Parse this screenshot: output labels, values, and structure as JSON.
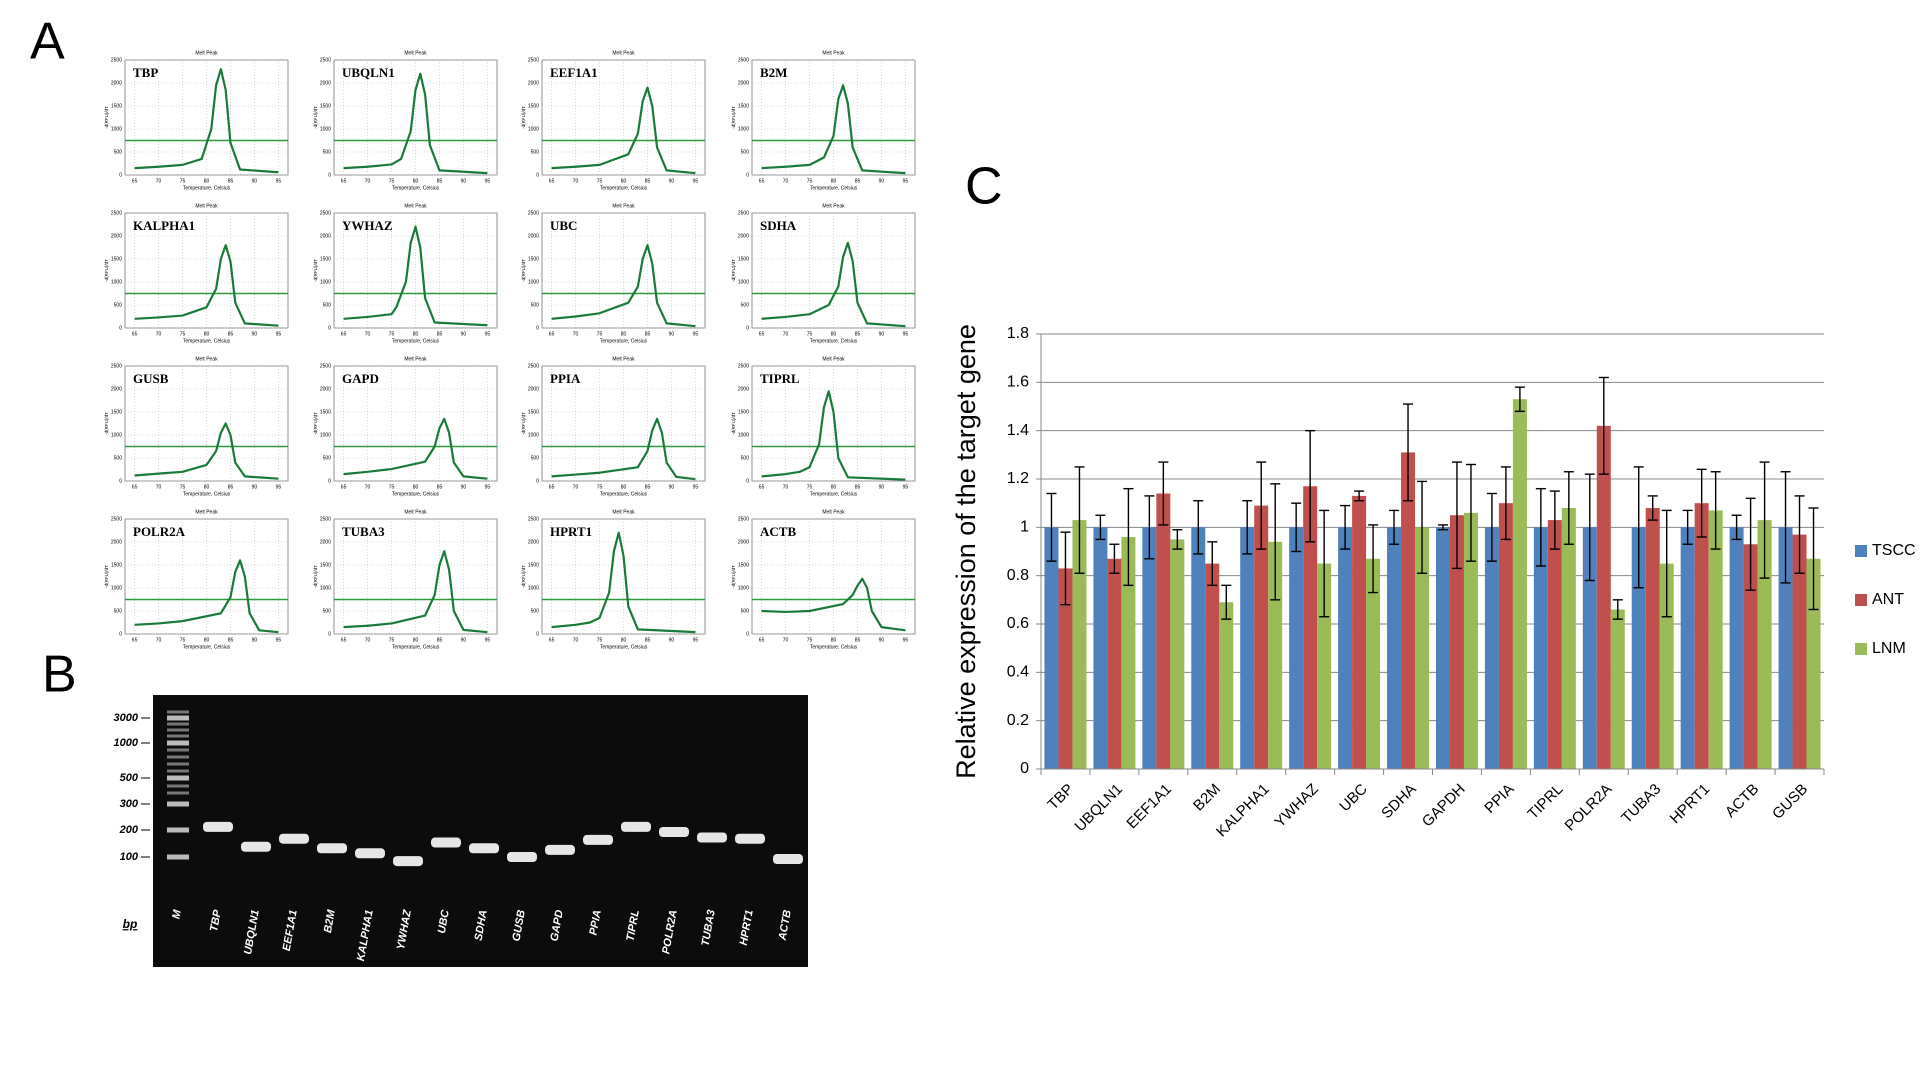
{
  "panel_labels": [
    "A",
    "B",
    "C"
  ],
  "melt_peaks": {
    "title": "Melt Peak",
    "x_label": "Temperature, Celsius",
    "y_label": "-d(RFU)/dT",
    "xlim": [
      63,
      97
    ],
    "ylim": [
      0,
      2500
    ],
    "xticks": [
      65,
      70,
      75,
      80,
      85,
      90,
      95
    ],
    "yticks": [
      0,
      500,
      1000,
      1500,
      2000,
      2500
    ],
    "threshold": 750,
    "color": "#1a7a3a",
    "panels": [
      {
        "gene": "TBP",
        "x": [
          65,
          70,
          75,
          79,
          81,
          82,
          83,
          84,
          85,
          87,
          95
        ],
        "y": [
          150,
          180,
          220,
          350,
          1000,
          1950,
          2300,
          1850,
          700,
          120,
          60
        ]
      },
      {
        "gene": "UBQLN1",
        "x": [
          65,
          70,
          75,
          77,
          79,
          80,
          81,
          82,
          83,
          85,
          95
        ],
        "y": [
          150,
          180,
          230,
          350,
          950,
          1850,
          2200,
          1750,
          650,
          100,
          40
        ]
      },
      {
        "gene": "EEF1A1",
        "x": [
          65,
          70,
          75,
          81,
          83,
          84,
          85,
          86,
          87,
          89,
          95
        ],
        "y": [
          150,
          180,
          220,
          450,
          900,
          1600,
          1900,
          1500,
          600,
          100,
          40
        ]
      },
      {
        "gene": "B2M",
        "x": [
          65,
          70,
          75,
          78,
          80,
          81,
          82,
          83,
          84,
          86,
          95
        ],
        "y": [
          150,
          180,
          220,
          380,
          850,
          1650,
          1950,
          1550,
          600,
          100,
          40
        ]
      },
      {
        "gene": "KALPHA1",
        "x": [
          65,
          70,
          75,
          80,
          82,
          83,
          84,
          85,
          86,
          88,
          95
        ],
        "y": [
          200,
          230,
          270,
          450,
          850,
          1500,
          1800,
          1450,
          550,
          100,
          50
        ]
      },
      {
        "gene": "YWHAZ",
        "x": [
          65,
          70,
          75,
          76,
          78,
          79,
          80,
          81,
          82,
          84,
          95
        ],
        "y": [
          200,
          240,
          300,
          450,
          1000,
          1850,
          2200,
          1750,
          650,
          120,
          60
        ]
      },
      {
        "gene": "UBC",
        "x": [
          65,
          70,
          75,
          81,
          83,
          84,
          85,
          86,
          87,
          89,
          95
        ],
        "y": [
          200,
          250,
          320,
          550,
          900,
          1500,
          1800,
          1400,
          550,
          100,
          40
        ]
      },
      {
        "gene": "SDHA",
        "x": [
          65,
          70,
          75,
          79,
          81,
          82,
          83,
          84,
          85,
          87,
          95
        ],
        "y": [
          200,
          240,
          300,
          500,
          900,
          1550,
          1850,
          1450,
          550,
          100,
          40
        ]
      },
      {
        "gene": "GUSB",
        "x": [
          65,
          70,
          75,
          80,
          82,
          83,
          84,
          85,
          86,
          88,
          95
        ],
        "y": [
          120,
          160,
          200,
          350,
          650,
          1050,
          1250,
          1000,
          400,
          100,
          50
        ]
      },
      {
        "gene": "GAPD",
        "x": [
          65,
          70,
          75,
          82,
          84,
          85,
          86,
          87,
          88,
          90,
          95
        ],
        "y": [
          150,
          200,
          260,
          420,
          750,
          1150,
          1350,
          1050,
          400,
          100,
          50
        ]
      },
      {
        "gene": "PPIA",
        "x": [
          65,
          70,
          75,
          83,
          85,
          86,
          87,
          88,
          89,
          91,
          95
        ],
        "y": [
          100,
          140,
          180,
          300,
          650,
          1100,
          1350,
          1050,
          400,
          90,
          40
        ]
      },
      {
        "gene": "TIPRL",
        "x": [
          65,
          70,
          73,
          75,
          77,
          78,
          79,
          80,
          81,
          83,
          95
        ],
        "y": [
          100,
          150,
          200,
          300,
          800,
          1600,
          1950,
          1500,
          500,
          80,
          30
        ]
      },
      {
        "gene": "POLR2A",
        "x": [
          65,
          70,
          75,
          83,
          85,
          86,
          87,
          88,
          89,
          91,
          95
        ],
        "y": [
          200,
          230,
          280,
          450,
          800,
          1350,
          1600,
          1250,
          450,
          80,
          40
        ]
      },
      {
        "gene": "TUBA3",
        "x": [
          65,
          70,
          75,
          82,
          84,
          85,
          86,
          87,
          88,
          90,
          95
        ],
        "y": [
          150,
          180,
          230,
          400,
          850,
          1500,
          1800,
          1400,
          500,
          90,
          40
        ]
      },
      {
        "gene": "HPRT1",
        "x": [
          65,
          70,
          73,
          75,
          77,
          78,
          79,
          80,
          81,
          83,
          95
        ],
        "y": [
          150,
          200,
          250,
          350,
          900,
          1800,
          2200,
          1700,
          600,
          100,
          40
        ]
      },
      {
        "gene": "ACTB",
        "x": [
          65,
          70,
          75,
          82,
          84,
          85,
          86,
          87,
          88,
          90,
          95
        ],
        "y": [
          500,
          480,
          500,
          650,
          850,
          1050,
          1200,
          1000,
          500,
          150,
          80
        ]
      }
    ]
  },
  "gel": {
    "unit": "bp",
    "ladder_bp": [
      3000,
      1000,
      500,
      300,
      200,
      100
    ],
    "lanes": [
      {
        "label": "M"
      },
      {
        "label": "TBP",
        "band_bp": 210
      },
      {
        "label": "UBQLN1",
        "band_bp": 130
      },
      {
        "label": "EEF1A1",
        "band_bp": 160
      },
      {
        "label": "B2M",
        "band_bp": 125
      },
      {
        "label": "KALPHA1",
        "band_bp": 110
      },
      {
        "label": "YWHAZ",
        "band_bp": 90
      },
      {
        "label": "UBC",
        "band_bp": 145
      },
      {
        "label": "SDHA",
        "band_bp": 125
      },
      {
        "label": "GUSB",
        "band_bp": 100
      },
      {
        "label": "GAPD",
        "band_bp": 120
      },
      {
        "label": "PPIA",
        "band_bp": 155
      },
      {
        "label": "TIPRL",
        "band_bp": 210
      },
      {
        "label": "POLR2A",
        "band_bp": 190
      },
      {
        "label": "TUBA3",
        "band_bp": 165
      },
      {
        "label": "HPRT1",
        "band_bp": 160
      },
      {
        "label": "ACTB",
        "band_bp": 95
      }
    ]
  },
  "chart_data": {
    "type": "bar",
    "y_label": "Relative expression of the target gene",
    "categories": [
      "TBP",
      "UBQLN1",
      "EEF1A1",
      "B2M",
      "KALPHA1",
      "YWHAZ",
      "UBC",
      "SDHA",
      "GAPDH",
      "PPIA",
      "TIPRL",
      "POLR2A",
      "TUBA3",
      "HPRT1",
      "ACTB",
      "GUSB"
    ],
    "series": [
      {
        "name": "TSCC",
        "color": "#4f81bd",
        "values": [
          1,
          1,
          1,
          1,
          1,
          1,
          1,
          1,
          1,
          1,
          1,
          1,
          1,
          1,
          1,
          1
        ],
        "errors": [
          0.14,
          0.05,
          0.13,
          0.11,
          0.11,
          0.1,
          0.09,
          0.07,
          0.01,
          0.14,
          0.16,
          0.22,
          0.25,
          0.07,
          0.05,
          0.23
        ]
      },
      {
        "name": "ANT",
        "color": "#c0504d",
        "values": [
          0.83,
          0.87,
          1.14,
          0.85,
          1.09,
          1.17,
          1.13,
          1.31,
          1.05,
          1.1,
          1.03,
          1.42,
          1.08,
          1.1,
          0.93,
          0.97
        ],
        "errors": [
          0.15,
          0.06,
          0.13,
          0.09,
          0.18,
          0.23,
          0.02,
          0.2,
          0.22,
          0.15,
          0.12,
          0.2,
          0.05,
          0.14,
          0.19,
          0.16
        ]
      },
      {
        "name": "LNM",
        "color": "#9bbb59",
        "values": [
          1.03,
          0.96,
          0.95,
          0.69,
          0.94,
          0.85,
          0.87,
          1,
          1.06,
          1.53,
          1.08,
          0.66,
          0.85,
          1.07,
          1.03,
          0.87
        ],
        "errors": [
          0.22,
          0.2,
          0.04,
          0.07,
          0.24,
          0.22,
          0.14,
          0.19,
          0.2,
          0.05,
          0.15,
          0.04,
          0.22,
          0.16,
          0.24,
          0.21
        ]
      }
    ],
    "ylim": [
      0,
      1.8
    ],
    "yticks": [
      0,
      0.2,
      0.4,
      0.6,
      0.8,
      1,
      1.2,
      1.4,
      1.6,
      1.8
    ],
    "grid": true,
    "legend": "right"
  }
}
